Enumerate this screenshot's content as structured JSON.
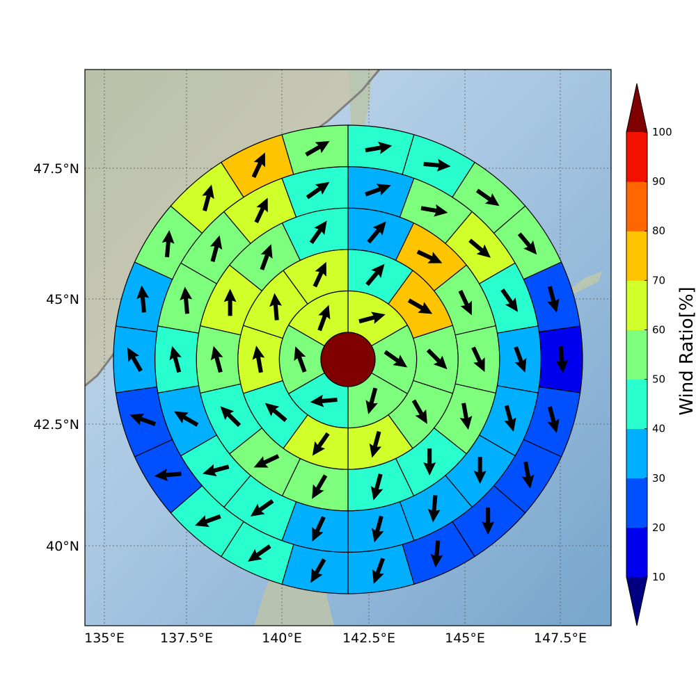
{
  "chart_data": {
    "type": "polar-sector-map",
    "title": "",
    "x_ticks": [
      "135°E",
      "137.5°E",
      "140°E",
      "142.5°E",
      "145°E",
      "147.5°E"
    ],
    "y_ticks": [
      "47.5°N",
      "45°N",
      "42.5°N",
      "40°N"
    ],
    "colorbar": {
      "label": "Wind Ratio[%]",
      "ticks": [
        "10",
        "20",
        "30",
        "40",
        "50",
        "60",
        "70",
        "80",
        "90",
        "100"
      ],
      "levels": [
        10,
        20,
        30,
        40,
        50,
        60,
        70,
        80,
        90,
        100
      ],
      "colors": [
        "#000080",
        "#0000ee",
        "#0050ff",
        "#00b0ff",
        "#29ffce",
        "#7dff7d",
        "#d0ff29",
        "#ffc400",
        "#ff6600",
        "#f21000",
        "#7f0000"
      ],
      "extend": "both"
    },
    "center_value": 105,
    "rings_note": "sectors listed clockwise starting at north; value = wind ratio % (bin midpoint); dir = arrow direction, compass degrees",
    "rings": [
      {
        "values": [
          65,
          55,
          55,
          45,
          55,
          65
        ],
        "dir": [
          75,
          125,
          195,
          265,
          340,
          20
        ]
      },
      {
        "values": [
          45,
          75,
          55,
          55,
          65,
          65,
          45,
          65,
          65,
          65
        ],
        "dir": [
          40,
          120,
          135,
          150,
          195,
          215,
          310,
          350,
          355,
          25
        ]
      },
      {
        "values": [
          35,
          75,
          55,
          55,
          55,
          45,
          45,
          55,
          55,
          45,
          55,
          65,
          55,
          45
        ],
        "dir": [
          40,
          115,
          155,
          155,
          170,
          180,
          195,
          210,
          245,
          315,
          345,
          0,
          20,
          35
        ]
      },
      {
        "values": [
          35,
          55,
          65,
          45,
          35,
          35,
          35,
          35,
          35,
          35,
          45,
          45,
          35,
          45,
          55,
          55,
          65,
          45
        ],
        "dir": [
          70,
          100,
          130,
          145,
          160,
          165,
          180,
          185,
          195,
          205,
          235,
          255,
          300,
          345,
          355,
          15,
          25,
          55
        ]
      },
      {
        "values": [
          45,
          45,
          55,
          55,
          25,
          15,
          25,
          25,
          25,
          25,
          35,
          35,
          45,
          45,
          25,
          25,
          35,
          35,
          55,
          65,
          75,
          55
        ],
        "dir": [
          80,
          95,
          125,
          140,
          165,
          175,
          165,
          170,
          180,
          185,
          200,
          210,
          235,
          250,
          265,
          290,
          330,
          355,
          5,
          15,
          25,
          60
        ]
      }
    ]
  }
}
